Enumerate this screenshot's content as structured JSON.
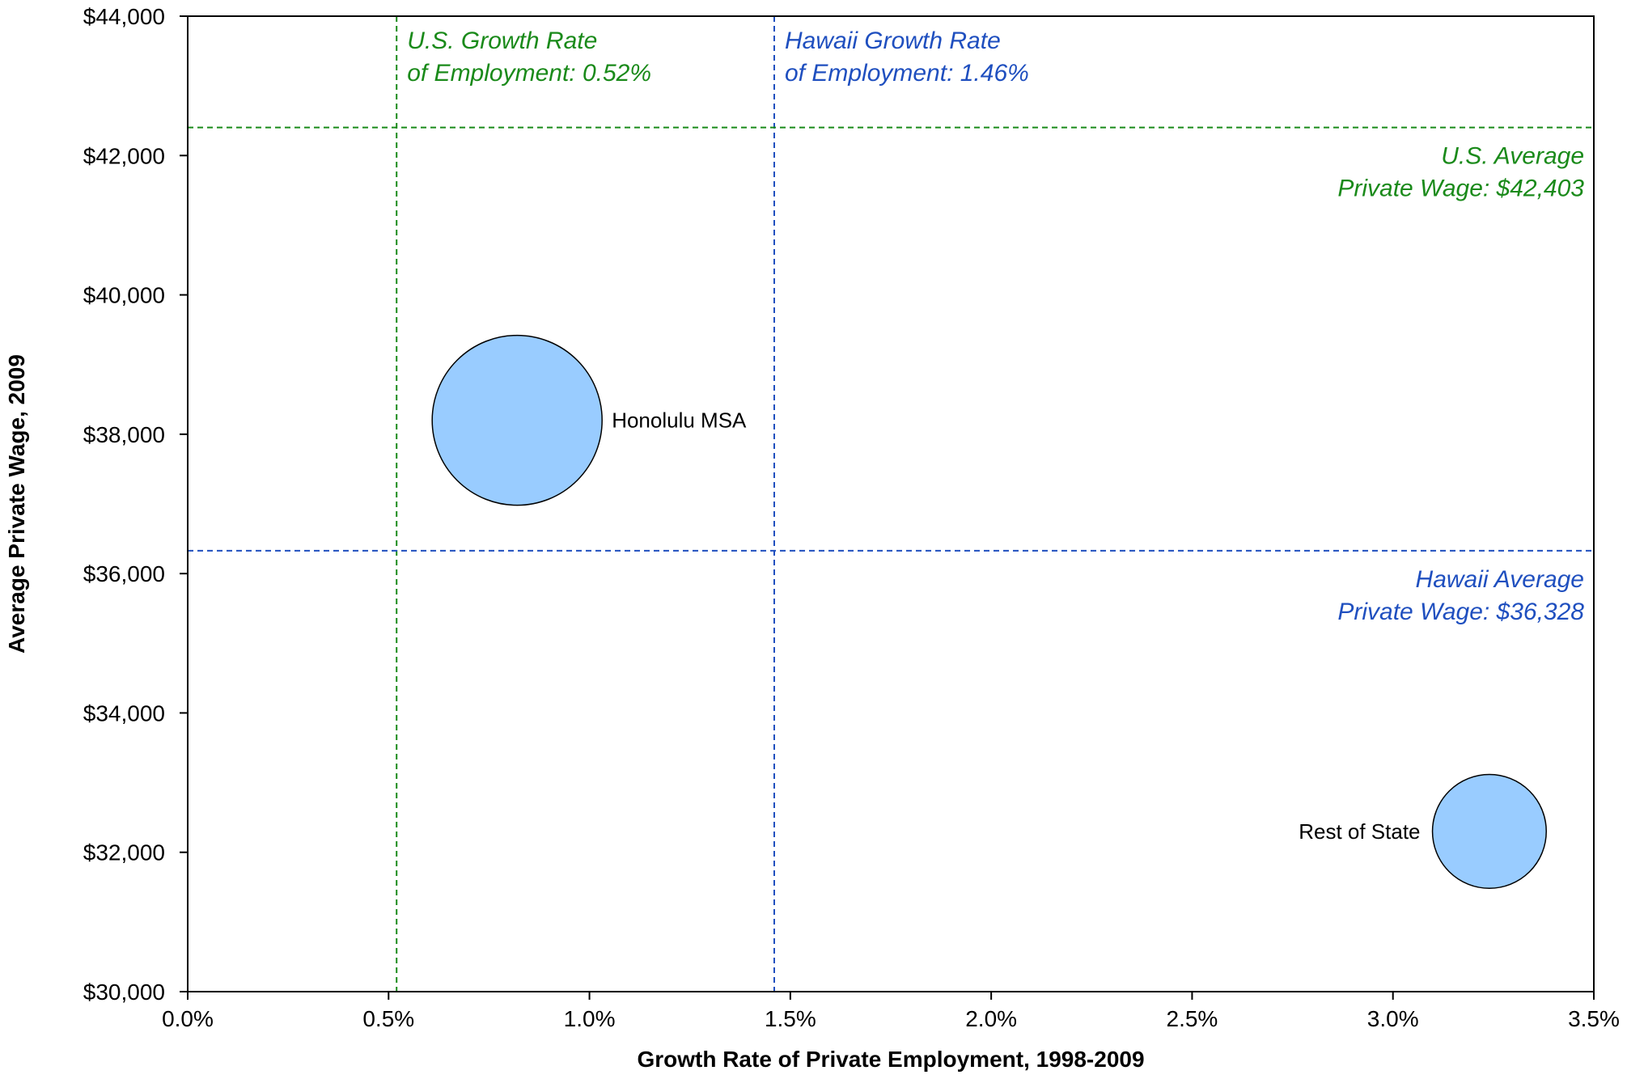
{
  "chart_data": {
    "type": "bubble",
    "xlabel": "Growth Rate of Private Employment, 1998-2009",
    "ylabel": "Average Private Wage, 2009",
    "xlim": [
      0,
      0.035
    ],
    "ylim": [
      30000,
      44000
    ],
    "x_ticks": [
      0,
      0.005,
      0.01,
      0.015,
      0.02,
      0.025,
      0.03,
      0.035
    ],
    "x_tick_labels": [
      "0.0%",
      "0.5%",
      "1.0%",
      "1.5%",
      "2.0%",
      "2.5%",
      "3.0%",
      "3.5%"
    ],
    "y_ticks": [
      30000,
      32000,
      34000,
      36000,
      38000,
      40000,
      42000,
      44000
    ],
    "y_tick_labels": [
      "$30,000",
      "$32,000",
      "$34,000",
      "$36,000",
      "$38,000",
      "$40,000",
      "$42,000",
      "$44,000"
    ],
    "grid": false,
    "bubbles": [
      {
        "label": "Honolulu MSA",
        "x": 0.0082,
        "y": 38200,
        "relative_size": 1.0,
        "label_side": "right"
      },
      {
        "label": "Rest of State",
        "x": 0.0324,
        "y": 32300,
        "relative_size": 0.67,
        "label_side": "left"
      }
    ],
    "reference_lines": [
      {
        "orientation": "vertical",
        "value": 0.0052,
        "label_line1": "U.S. Growth Rate",
        "label_line2": "of Employment: 0.52%",
        "color": "#1a8a1a"
      },
      {
        "orientation": "vertical",
        "value": 0.0146,
        "label_line1": "Hawaii Growth Rate",
        "label_line2": "of Employment: 1.46%",
        "color": "#1f4fbf"
      },
      {
        "orientation": "horizontal",
        "value": 42403,
        "label_line1": "U.S. Average",
        "label_line2": "Private Wage: $42,403",
        "color": "#1a8a1a"
      },
      {
        "orientation": "horizontal",
        "value": 36328,
        "label_line1": "Hawaii Average",
        "label_line2": "Private Wage: $36,328",
        "color": "#1f4fbf"
      }
    ],
    "bubble_fill": "#99ccff",
    "bubble_stroke": "#000000"
  }
}
